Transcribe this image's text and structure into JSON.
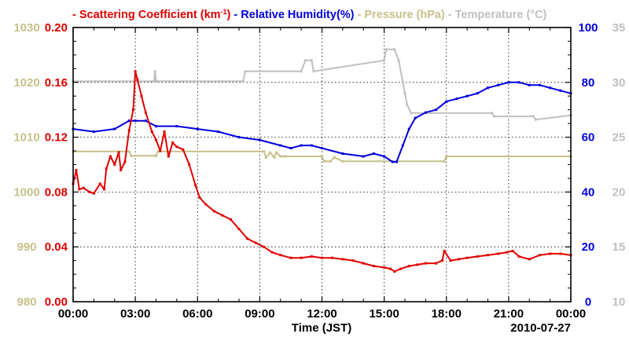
{
  "chart_data": {
    "type": "line",
    "date_label": "2010-07-27",
    "xlabel": "Time (JST)",
    "x_ticks": [
      "00:00",
      "03:00",
      "06:00",
      "09:00",
      "12:00",
      "15:00",
      "18:00",
      "21:00",
      "00:00"
    ],
    "xlim_hours": [
      0,
      24
    ],
    "grid": true,
    "legend": [
      {
        "name": "Scattering Coefficient (km",
        "sup": "-1",
        "suffix": ")",
        "color": "#e00000"
      },
      {
        "name": "Relative Humidity(%)",
        "color": "#0000e0"
      },
      {
        "name": "Pressure (hPa)",
        "color": "#c8c08a"
      },
      {
        "name": "Temperature (°C)",
        "color": "#c0c0c0"
      }
    ],
    "axes": {
      "scattering": {
        "side": "left-inner",
        "color": "#e00000",
        "ylim": [
          0,
          0.2
        ],
        "ticks": [
          "0.00",
          "0.04",
          "0.08",
          "0.12",
          "0.16",
          "0.20"
        ]
      },
      "pressure": {
        "side": "left-outer",
        "color": "#c8c08a",
        "ylim": [
          980,
          1030
        ],
        "ticks": [
          "980",
          "990",
          "1000",
          "1010",
          "1020",
          "1030"
        ]
      },
      "humidity": {
        "side": "right-inner",
        "color": "#0000e0",
        "ylim": [
          0,
          100
        ],
        "ticks": [
          "0",
          "20",
          "40",
          "60",
          "80",
          "100"
        ]
      },
      "temperature": {
        "side": "right-outer",
        "color": "#c0c0c0",
        "ylim": [
          10,
          35
        ],
        "ticks": [
          "10",
          "15",
          "20",
          "25",
          "30",
          "35"
        ]
      }
    },
    "series": [
      {
        "name": "Temperature",
        "axis": "temperature",
        "color": "#c0c0c0",
        "x": [
          0,
          3.9,
          3.95,
          4.0,
          4.05,
          8.2,
          8.3,
          11.0,
          11.2,
          11.5,
          11.6,
          15.0,
          15.1,
          15.5,
          15.7,
          15.9,
          16.0,
          16.1,
          16.3,
          20.2,
          20.3,
          22.2,
          22.3,
          24.0
        ],
        "values": [
          30.1,
          30.1,
          31.0,
          30.1,
          30.1,
          30.1,
          31.0,
          31.0,
          32.0,
          32.0,
          31.0,
          32.0,
          33.0,
          33.0,
          32.0,
          30.0,
          29.0,
          28.0,
          27.2,
          27.2,
          26.9,
          26.9,
          26.6,
          27.0
        ]
      },
      {
        "name": "Pressure",
        "axis": "pressure",
        "color": "#c8c08a",
        "x": [
          0,
          2.7,
          2.8,
          4.0,
          4.1,
          9.2,
          9.3,
          9.5,
          9.7,
          9.8,
          10.0,
          10.2,
          12.0,
          12.1,
          12.4,
          12.6,
          13.0,
          17.9,
          18.0,
          24.0
        ],
        "values": [
          1007.4,
          1007.4,
          1006.6,
          1006.6,
          1007.4,
          1007.4,
          1006.3,
          1007.2,
          1006.3,
          1007.2,
          1006.5,
          1006.5,
          1006.5,
          1005.6,
          1005.6,
          1006.3,
          1005.6,
          1005.6,
          1006.5,
          1006.5
        ]
      },
      {
        "name": "Relative Humidity",
        "axis": "humidity",
        "color": "#0000e0",
        "x": [
          0,
          1.0,
          2.0,
          2.7,
          3.0,
          3.5,
          4.0,
          5.0,
          6.0,
          7.0,
          8.0,
          9.0,
          10.0,
          10.5,
          11.0,
          11.5,
          12.0,
          13.0,
          14.0,
          14.5,
          15.0,
          15.4,
          15.6,
          15.9,
          16.2,
          16.5,
          17.0,
          17.5,
          18.0,
          18.5,
          19.0,
          19.5,
          20.0,
          20.5,
          21.0,
          21.5,
          22.0,
          22.5,
          23.0,
          23.5,
          24.0
        ],
        "values": [
          63,
          62,
          63,
          66,
          66,
          66,
          64,
          64,
          63,
          62,
          60,
          59,
          57,
          56,
          57,
          57,
          56,
          54,
          53,
          54,
          53,
          51,
          51,
          57,
          63,
          67,
          69,
          70,
          73,
          74,
          75,
          76,
          78,
          79,
          80,
          80,
          79,
          79,
          78,
          77,
          76
        ]
      },
      {
        "name": "Scattering Coefficient",
        "axis": "scattering",
        "color": "#e00000",
        "x": [
          0,
          0.15,
          0.3,
          0.5,
          0.8,
          1.0,
          1.3,
          1.5,
          1.6,
          1.8,
          2.0,
          2.2,
          2.3,
          2.5,
          2.7,
          2.9,
          3.0,
          3.1,
          3.3,
          3.5,
          3.8,
          4.0,
          4.2,
          4.4,
          4.6,
          4.8,
          5.0,
          5.3,
          5.6,
          5.9,
          6.1,
          6.4,
          6.8,
          7.2,
          7.6,
          8.0,
          8.4,
          8.8,
          9.2,
          9.6,
          10.0,
          10.5,
          11.0,
          11.5,
          12.0,
          12.5,
          13.0,
          13.5,
          14.0,
          14.5,
          15.0,
          15.3,
          15.5,
          15.8,
          16.2,
          16.6,
          17.0,
          17.5,
          17.8,
          17.9,
          18.2,
          18.6,
          19.0,
          19.5,
          20.0,
          20.5,
          20.9,
          21.2,
          21.5,
          22.0,
          22.5,
          23.0,
          23.5,
          24.0
        ],
        "values": [
          0.086,
          0.096,
          0.082,
          0.083,
          0.08,
          0.079,
          0.086,
          0.082,
          0.097,
          0.106,
          0.1,
          0.109,
          0.096,
          0.102,
          0.125,
          0.14,
          0.168,
          0.162,
          0.15,
          0.138,
          0.124,
          0.118,
          0.11,
          0.124,
          0.106,
          0.116,
          0.113,
          0.111,
          0.1,
          0.085,
          0.076,
          0.071,
          0.066,
          0.063,
          0.06,
          0.053,
          0.046,
          0.043,
          0.04,
          0.036,
          0.034,
          0.032,
          0.032,
          0.033,
          0.032,
          0.032,
          0.031,
          0.03,
          0.028,
          0.026,
          0.025,
          0.024,
          0.022,
          0.024,
          0.026,
          0.027,
          0.028,
          0.028,
          0.03,
          0.037,
          0.03,
          0.031,
          0.032,
          0.033,
          0.034,
          0.035,
          0.036,
          0.037,
          0.033,
          0.031,
          0.034,
          0.035,
          0.035,
          0.034
        ]
      }
    ]
  }
}
